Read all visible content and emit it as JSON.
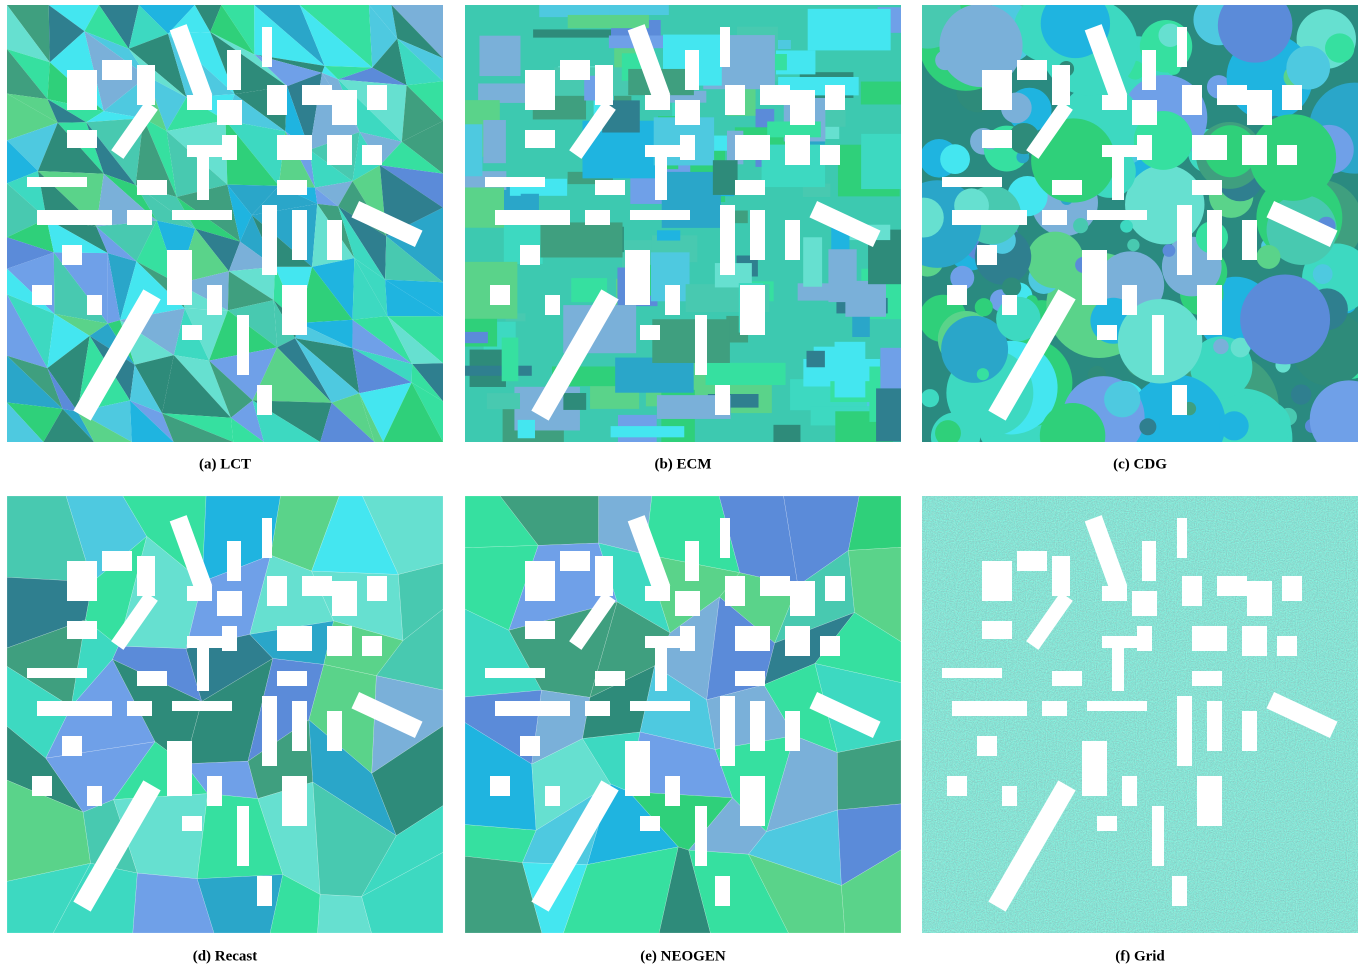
{
  "figure": {
    "panels": [
      {
        "caption": "(a) LCT"
      },
      {
        "caption": "(b) ECM"
      },
      {
        "caption": "(c) CDG"
      },
      {
        "caption": "(d) Recast"
      },
      {
        "caption": "(e) NEOGEN"
      },
      {
        "caption": "(f) Grid"
      }
    ]
  }
}
